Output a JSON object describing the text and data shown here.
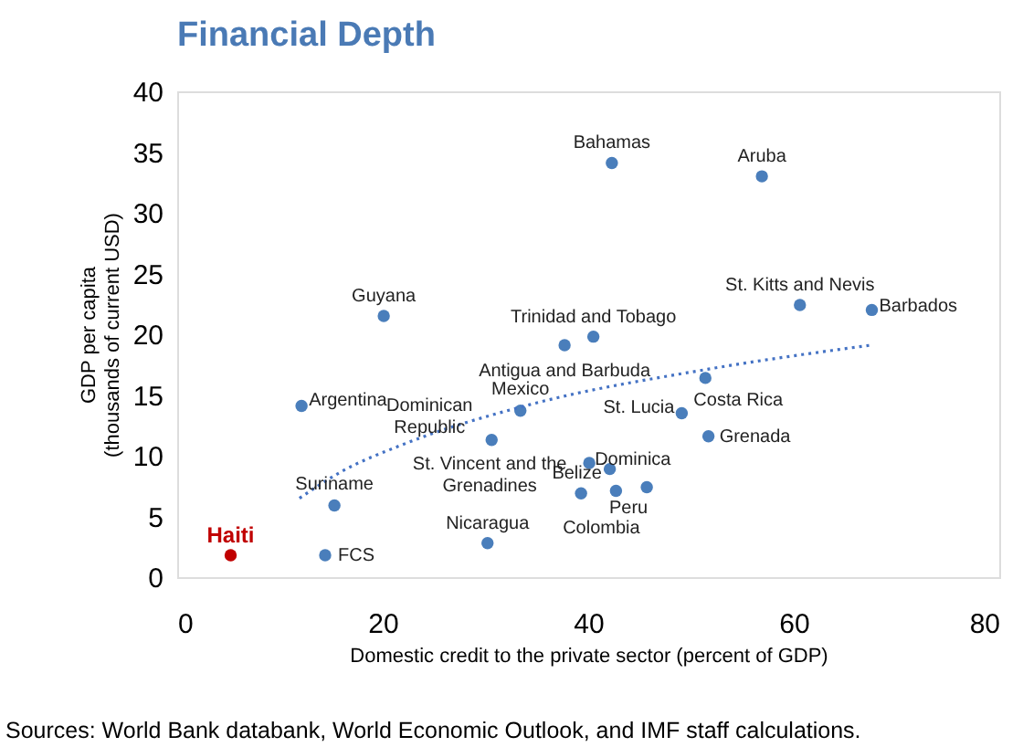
{
  "chart_data": {
    "type": "scatter",
    "title": "Financial Depth",
    "xlabel": "Domestic credit to the private sector (percent of GDP)",
    "ylabel": "GDP per capita (thousands of current USD)",
    "xlim": [
      0,
      80
    ],
    "xticks": [
      0,
      20,
      40,
      60,
      80
    ],
    "ylim": [
      0,
      40
    ],
    "yticks": [
      0,
      5,
      10,
      15,
      20,
      25,
      30,
      35,
      40
    ],
    "grid": false,
    "marker": "circle",
    "series": [
      {
        "color": "#4a7ebb",
        "x": [
          42.3,
          56.9,
          60.6,
          67.6,
          20.1,
          40.5,
          37.7,
          12.1,
          33.4,
          30.6,
          39.3,
          40.1,
          42.1,
          42.7,
          45.7,
          49.1,
          51.4,
          51.7,
          15.3,
          14.4,
          30.2
        ],
        "values": [
          34.1,
          33.0,
          22.4,
          22.0,
          21.5,
          19.8,
          19.1,
          14.1,
          13.7,
          11.3,
          6.9,
          9.4,
          8.9,
          7.1,
          7.4,
          13.5,
          16.4,
          11.6,
          5.9,
          1.8,
          2.8
        ]
      },
      {
        "name": "Haiti",
        "color": "#c00000",
        "x": [
          5.2
        ],
        "values": [
          1.8
        ]
      },
      {
        "type": "line",
        "marker": "none",
        "line_style": "dotted",
        "color": "#4472c4",
        "x": [
          11.9,
          16,
          21.9,
          34.3,
          51.5,
          67.5
        ],
        "values": [
          6.5,
          8.7,
          10.9,
          14.2,
          17.1,
          19.1
        ]
      }
    ],
    "annotations": [
      {
        "text": "Bahamas",
        "x": 42.3,
        "y": 34.1
      },
      {
        "text": "Aruba",
        "x": 56.9,
        "y": 33.0
      },
      {
        "text": "St. Kitts and Nevis",
        "x": 60.6,
        "y": 22.4
      },
      {
        "text": "Barbados",
        "x": 67.6,
        "y": 22.0
      },
      {
        "text": "Guyana",
        "x": 20.1,
        "y": 21.5
      },
      {
        "text": "Trinidad and Tobago",
        "x": 40.5,
        "y": 19.8
      },
      {
        "text": "Antigua and Barbuda",
        "x": 37.7,
        "y": 19.1
      },
      {
        "text": "Argentina",
        "x": 12.1,
        "y": 14.1
      },
      {
        "text": "Mexico",
        "x": 33.4,
        "y": 13.7
      },
      {
        "text": "Dominican Republic",
        "x": 30.6,
        "y": 11.3
      },
      {
        "text": "St. Vincent and the Grenadines",
        "x": 39.3,
        "y": 6.9
      },
      {
        "text": "Dominica",
        "x": 40.1,
        "y": 9.4
      },
      {
        "text": "Belize",
        "x": 42.1,
        "y": 8.9
      },
      {
        "text": "Colombia",
        "x": 42.7,
        "y": 7.1
      },
      {
        "text": "Peru",
        "x": 45.7,
        "y": 7.4
      },
      {
        "text": "St. Lucia",
        "x": 49.1,
        "y": 13.5
      },
      {
        "text": "Costa Rica",
        "x": 51.4,
        "y": 16.4
      },
      {
        "text": "Grenada",
        "x": 51.7,
        "y": 11.6
      },
      {
        "text": "Suriname",
        "x": 15.3,
        "y": 5.9
      },
      {
        "text": "FCS",
        "x": 14.4,
        "y": 1.8
      },
      {
        "text": "Nicaragua",
        "x": 30.2,
        "y": 2.8
      },
      "Sources: World Bank databank, World Economic Outlook, and IMF staff calculations."
    ]
  }
}
